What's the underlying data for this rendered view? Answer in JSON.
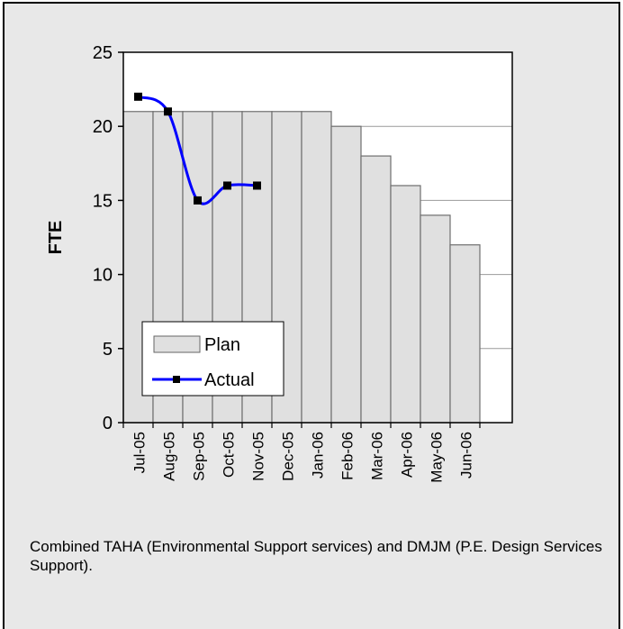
{
  "chart_data": {
    "type": "bar",
    "categories": [
      "Jul-05",
      "Aug-05",
      "Sep-05",
      "Oct-05",
      "Nov-05",
      "Dec-05",
      "Jan-06",
      "Feb-06",
      "Mar-06",
      "Apr-06",
      "May-06",
      "Jun-06"
    ],
    "series": [
      {
        "name": "Plan",
        "type": "bar",
        "values": [
          21,
          21,
          21,
          21,
          21,
          21,
          21,
          20,
          18,
          16,
          14,
          12
        ],
        "color": "#e0e0e0"
      },
      {
        "name": "Actual",
        "type": "line",
        "values": [
          22,
          21,
          15,
          16,
          16,
          null,
          null,
          null,
          null,
          null,
          null,
          null
        ],
        "color": "#0000ff"
      }
    ],
    "ylabel": "FTE",
    "ylim": [
      0,
      25
    ],
    "yticks": [
      0,
      5,
      10,
      15,
      20,
      25
    ],
    "grid": true,
    "legend_position": "lower-left"
  },
  "caption": "Combined TAHA (Environmental Support services) and DMJM (P.E. Design Services Support)."
}
